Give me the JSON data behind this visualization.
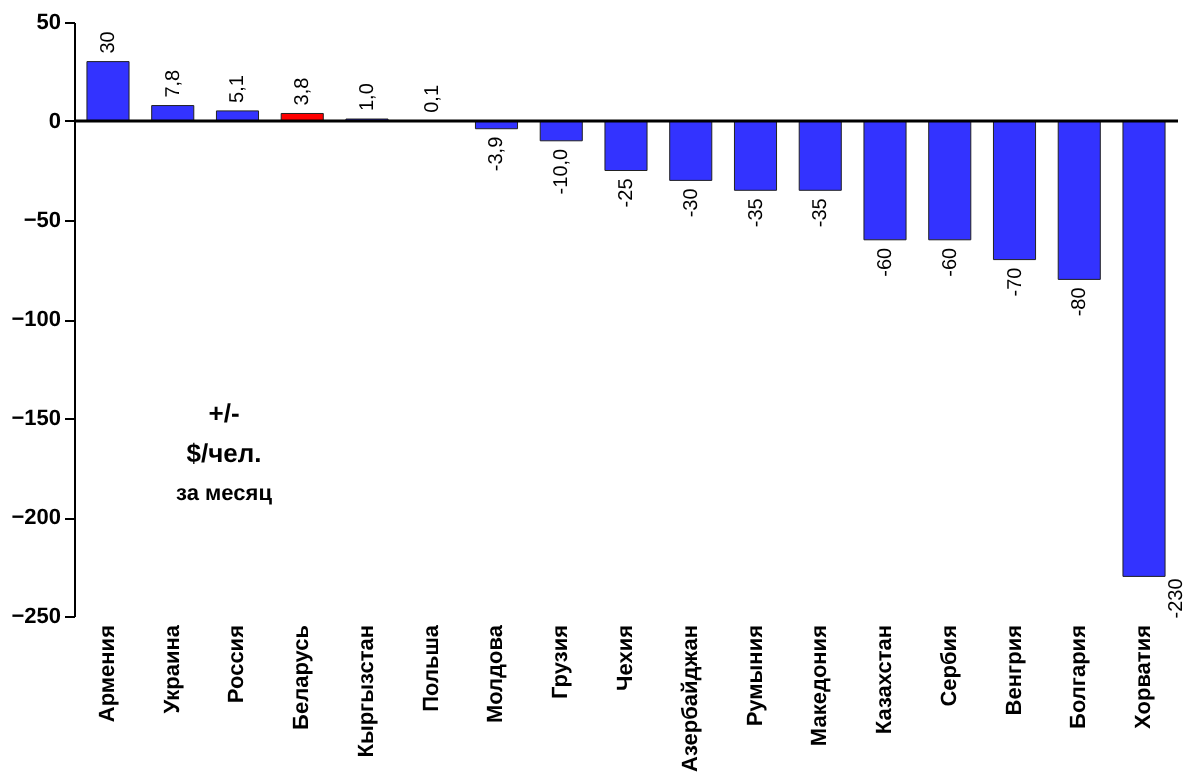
{
  "chart_data": {
    "type": "bar",
    "categories": [
      "Армения",
      "Украина",
      "Россия",
      "Беларусь",
      "Кыргызстан",
      "Польша",
      "Молдова",
      "Грузия",
      "Чехия",
      "Азербайджан",
      "Румыния",
      "Македония",
      "Казахстан",
      "Сербия",
      "Венгрия",
      "Болгария",
      "Хорватия"
    ],
    "values": [
      30,
      7.8,
      5.1,
      3.8,
      1.0,
      0.1,
      -3.9,
      -10.0,
      -25,
      -30,
      -35,
      -35,
      -60,
      -60,
      -70,
      -80,
      -230
    ],
    "value_labels": [
      "30",
      "7,8",
      "5,1",
      "3,8",
      "1,0",
      "0,1",
      "-3,9",
      "-10,0",
      "-25",
      "-30",
      "-35",
      "-35",
      "-60",
      "-60",
      "-70",
      "-80",
      "-230"
    ],
    "colors": [
      "#3333ff",
      "#3333ff",
      "#3333ff",
      "#ff0000",
      "#3333ff",
      "#3333ff",
      "#3333ff",
      "#3333ff",
      "#3333ff",
      "#3333ff",
      "#3333ff",
      "#3333ff",
      "#3333ff",
      "#3333ff",
      "#3333ff",
      "#3333ff",
      "#3333ff"
    ],
    "ylim": [
      -250,
      50
    ],
    "yticks": [
      -250,
      -200,
      -150,
      -100,
      -50,
      0,
      50
    ],
    "ref_lines": [
      {
        "axis": "y",
        "value": 0,
        "color": "#000000"
      }
    ],
    "annotations": [
      "+/-",
      "$/чел.",
      "за месяц"
    ],
    "grid": false
  }
}
